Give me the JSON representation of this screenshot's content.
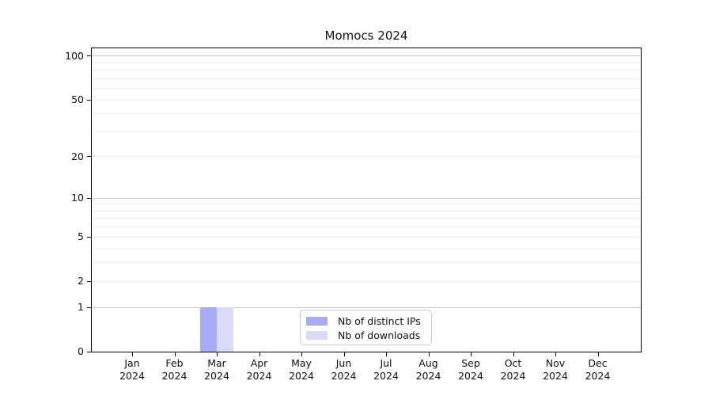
{
  "figure": {
    "background": "#ffffff"
  },
  "chart_data": {
    "type": "bar",
    "title": "Momocs 2024",
    "xlabel": "",
    "ylabel": "",
    "categories": [
      "Jan 2024",
      "Feb 2024",
      "Mar 2024",
      "Apr 2024",
      "May 2024",
      "Jun 2024",
      "Jul 2024",
      "Aug 2024",
      "Sep 2024",
      "Oct 2024",
      "Nov 2024",
      "Dec 2024"
    ],
    "series": [
      {
        "name": "Nb of distinct IPs",
        "color": "#a9aaf6",
        "values": [
          0,
          0,
          1,
          0,
          0,
          0,
          0,
          0,
          0,
          0,
          0,
          0
        ]
      },
      {
        "name": "Nb of downloads",
        "color": "#dadaf9",
        "values": [
          0,
          0,
          1,
          0,
          0,
          0,
          0,
          0,
          0,
          0,
          0,
          0
        ]
      }
    ],
    "y_scale": "log1p",
    "ylim": [
      0,
      115
    ],
    "y_tick_values": [
      0,
      1,
      2,
      5,
      10,
      20,
      50,
      100
    ],
    "y_tick_labels": [
      "0",
      "1",
      "2",
      "5",
      "10",
      "20",
      "50",
      "100"
    ],
    "y_major_gridlines": [
      1,
      10,
      100
    ],
    "y_minor_gridlines": [
      2,
      3,
      4,
      5,
      6,
      7,
      8,
      9,
      20,
      30,
      40,
      50,
      60,
      70,
      80,
      90
    ],
    "grid": true,
    "legend_position": "bottom-center",
    "colors": {
      "major_grid": "#c9c9c9",
      "minor_grid": "#ededed",
      "axis": "#000000",
      "text": "#111111",
      "legend_border": "#cccccc"
    }
  }
}
